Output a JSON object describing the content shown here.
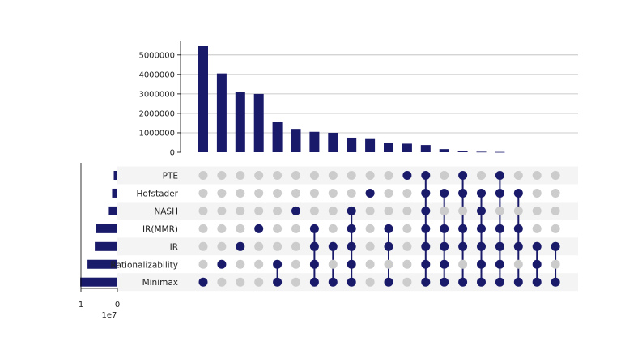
{
  "chart_data": {
    "type": "upset",
    "colors": {
      "active": "#1a1a6b",
      "inactive": "#cccccc",
      "stripe": "#f4f4f4",
      "grid": "#bbbbbb"
    },
    "sets": [
      "PTE",
      "Hofstader",
      "NASH",
      "IR(MMR)",
      "IR",
      "Rationalizability",
      "Minimax"
    ],
    "set_sizes": [
      1000000,
      1450000,
      2350000,
      6000000,
      6200000,
      8200000,
      10200000
    ],
    "set_size_axis": {
      "ticks": [
        "1",
        "0"
      ],
      "offset_label": "1e7",
      "range": [
        0,
        10000000
      ]
    },
    "intersection_axis": {
      "ticks": [
        "0",
        "1000000",
        "2000000",
        "3000000",
        "4000000",
        "5000000"
      ],
      "range": [
        0,
        5700000
      ]
    },
    "intersections": [
      {
        "value": 5450000,
        "members": [
          "Minimax"
        ]
      },
      {
        "value": 4050000,
        "members": [
          "Rationalizability"
        ]
      },
      {
        "value": 3100000,
        "members": [
          "IR"
        ]
      },
      {
        "value": 3000000,
        "members": [
          "IR(MMR)"
        ]
      },
      {
        "value": 1580000,
        "members": [
          "Rationalizability",
          "Minimax"
        ]
      },
      {
        "value": 1200000,
        "members": [
          "NASH"
        ]
      },
      {
        "value": 1050000,
        "members": [
          "IR(MMR)",
          "IR",
          "Rationalizability",
          "Minimax"
        ]
      },
      {
        "value": 1000000,
        "members": [
          "IR",
          "Minimax"
        ]
      },
      {
        "value": 750000,
        "members": [
          "NASH",
          "IR(MMR)",
          "IR",
          "Rationalizability",
          "Minimax"
        ]
      },
      {
        "value": 720000,
        "members": [
          "Hofstader"
        ]
      },
      {
        "value": 500000,
        "members": [
          "IR(MMR)",
          "IR",
          "Minimax"
        ]
      },
      {
        "value": 440000,
        "members": [
          "PTE"
        ]
      },
      {
        "value": 370000,
        "members": [
          "PTE",
          "Hofstader",
          "NASH",
          "IR(MMR)",
          "IR",
          "Rationalizability",
          "Minimax"
        ]
      },
      {
        "value": 160000,
        "members": [
          "Hofstader",
          "IR(MMR)",
          "IR",
          "Rationalizability",
          "Minimax"
        ]
      },
      {
        "value": 40000,
        "members": [
          "PTE",
          "Hofstader",
          "IR(MMR)",
          "IR",
          "Minimax"
        ]
      },
      {
        "value": 25000,
        "members": [
          "Hofstader",
          "NASH",
          "IR(MMR)",
          "IR",
          "Rationalizability",
          "Minimax"
        ]
      },
      {
        "value": 15000,
        "members": [
          "PTE",
          "Hofstader",
          "IR(MMR)",
          "IR",
          "Rationalizability",
          "Minimax"
        ]
      },
      {
        "value": 0,
        "members": [
          "Hofstader",
          "IR(MMR)",
          "IR",
          "Minimax"
        ]
      },
      {
        "value": 0,
        "members": [
          "IR",
          "Rationalizability",
          "Minimax"
        ]
      },
      {
        "value": 0,
        "members": [
          "IR",
          "Minimax"
        ]
      }
    ]
  }
}
